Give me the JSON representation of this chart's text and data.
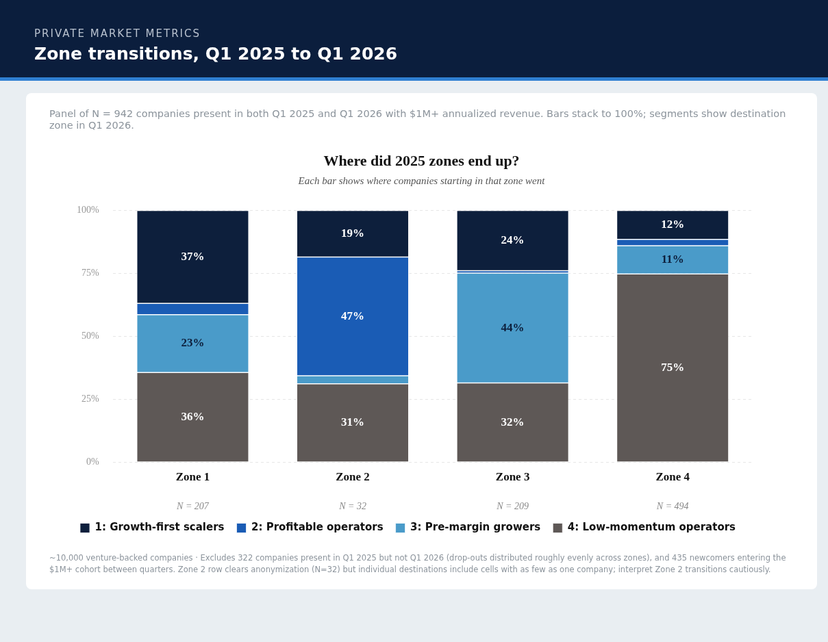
{
  "chart_data": {
    "type": "bar",
    "stacked": true,
    "title": "Where did 2025 zones end up?",
    "subtitle": "Each bar shows where companies starting in that zone went",
    "categories": [
      "Zone 1",
      "Zone 2",
      "Zone 3",
      "Zone 4"
    ],
    "series": [
      {
        "name": "4: Low-momentum operators",
        "color": "#5e5856",
        "values": [
          35.7,
          31.2,
          31.5,
          74.8
        ],
        "value_labels": [
          "36%",
          "31%",
          "32%",
          "75%"
        ]
      },
      {
        "name": "3: Pre-margin growers",
        "color": "#4a9bc9",
        "values": [
          22.9,
          3.2,
          43.6,
          11.2
        ],
        "value_labels": [
          "23%",
          null,
          "44%",
          "11%"
        ]
      },
      {
        "name": "2: Profitable operators",
        "color": "#1a5cb5",
        "values": [
          4.5,
          47.1,
          1.0,
          2.5
        ],
        "value_labels": [
          null,
          "47%",
          null,
          null
        ]
      },
      {
        "name": "1: Growth-first scalers",
        "color": "#0d1f3c",
        "values": [
          36.9,
          18.5,
          23.9,
          11.5
        ],
        "value_labels": [
          "37%",
          "19%",
          "24%",
          "12%"
        ]
      }
    ],
    "ylim": [
      0,
      100
    ],
    "yticks": [
      {
        "value": 0,
        "label": "0%"
      },
      {
        "value": 25,
        "label": "25%"
      },
      {
        "value": 50,
        "label": "50%"
      },
      {
        "value": 75,
        "label": "75%"
      },
      {
        "value": 100,
        "label": "100%"
      }
    ],
    "grid": "y",
    "legend": "bottom",
    "annotations": [
      "PRIVATE MARKET METRICS",
      "Zone transitions, Q1 2025 to Q1 2026",
      "Panel of N = 942 companies present in both Q1 2025 and Q1 2026 with $1M+ annualized revenue. Bars stack to 100%; segments show destination zone in Q1 2026.",
      "~10,000 venture-backed companies · Excludes 322 companies present in Q1 2025 but not Q1 2026 (drop-outs distributed roughly evenly across zones), and 435 newcomers entering the $1M+ cohort between quarters. Zone 2 row clears anonymization (N=32) but individual destinations include cells with as few as one company; interpret Zone 2 transitions cautiously.",
      "N = 207",
      "N = 32",
      "N = 209",
      "N = 494"
    ]
  }
}
